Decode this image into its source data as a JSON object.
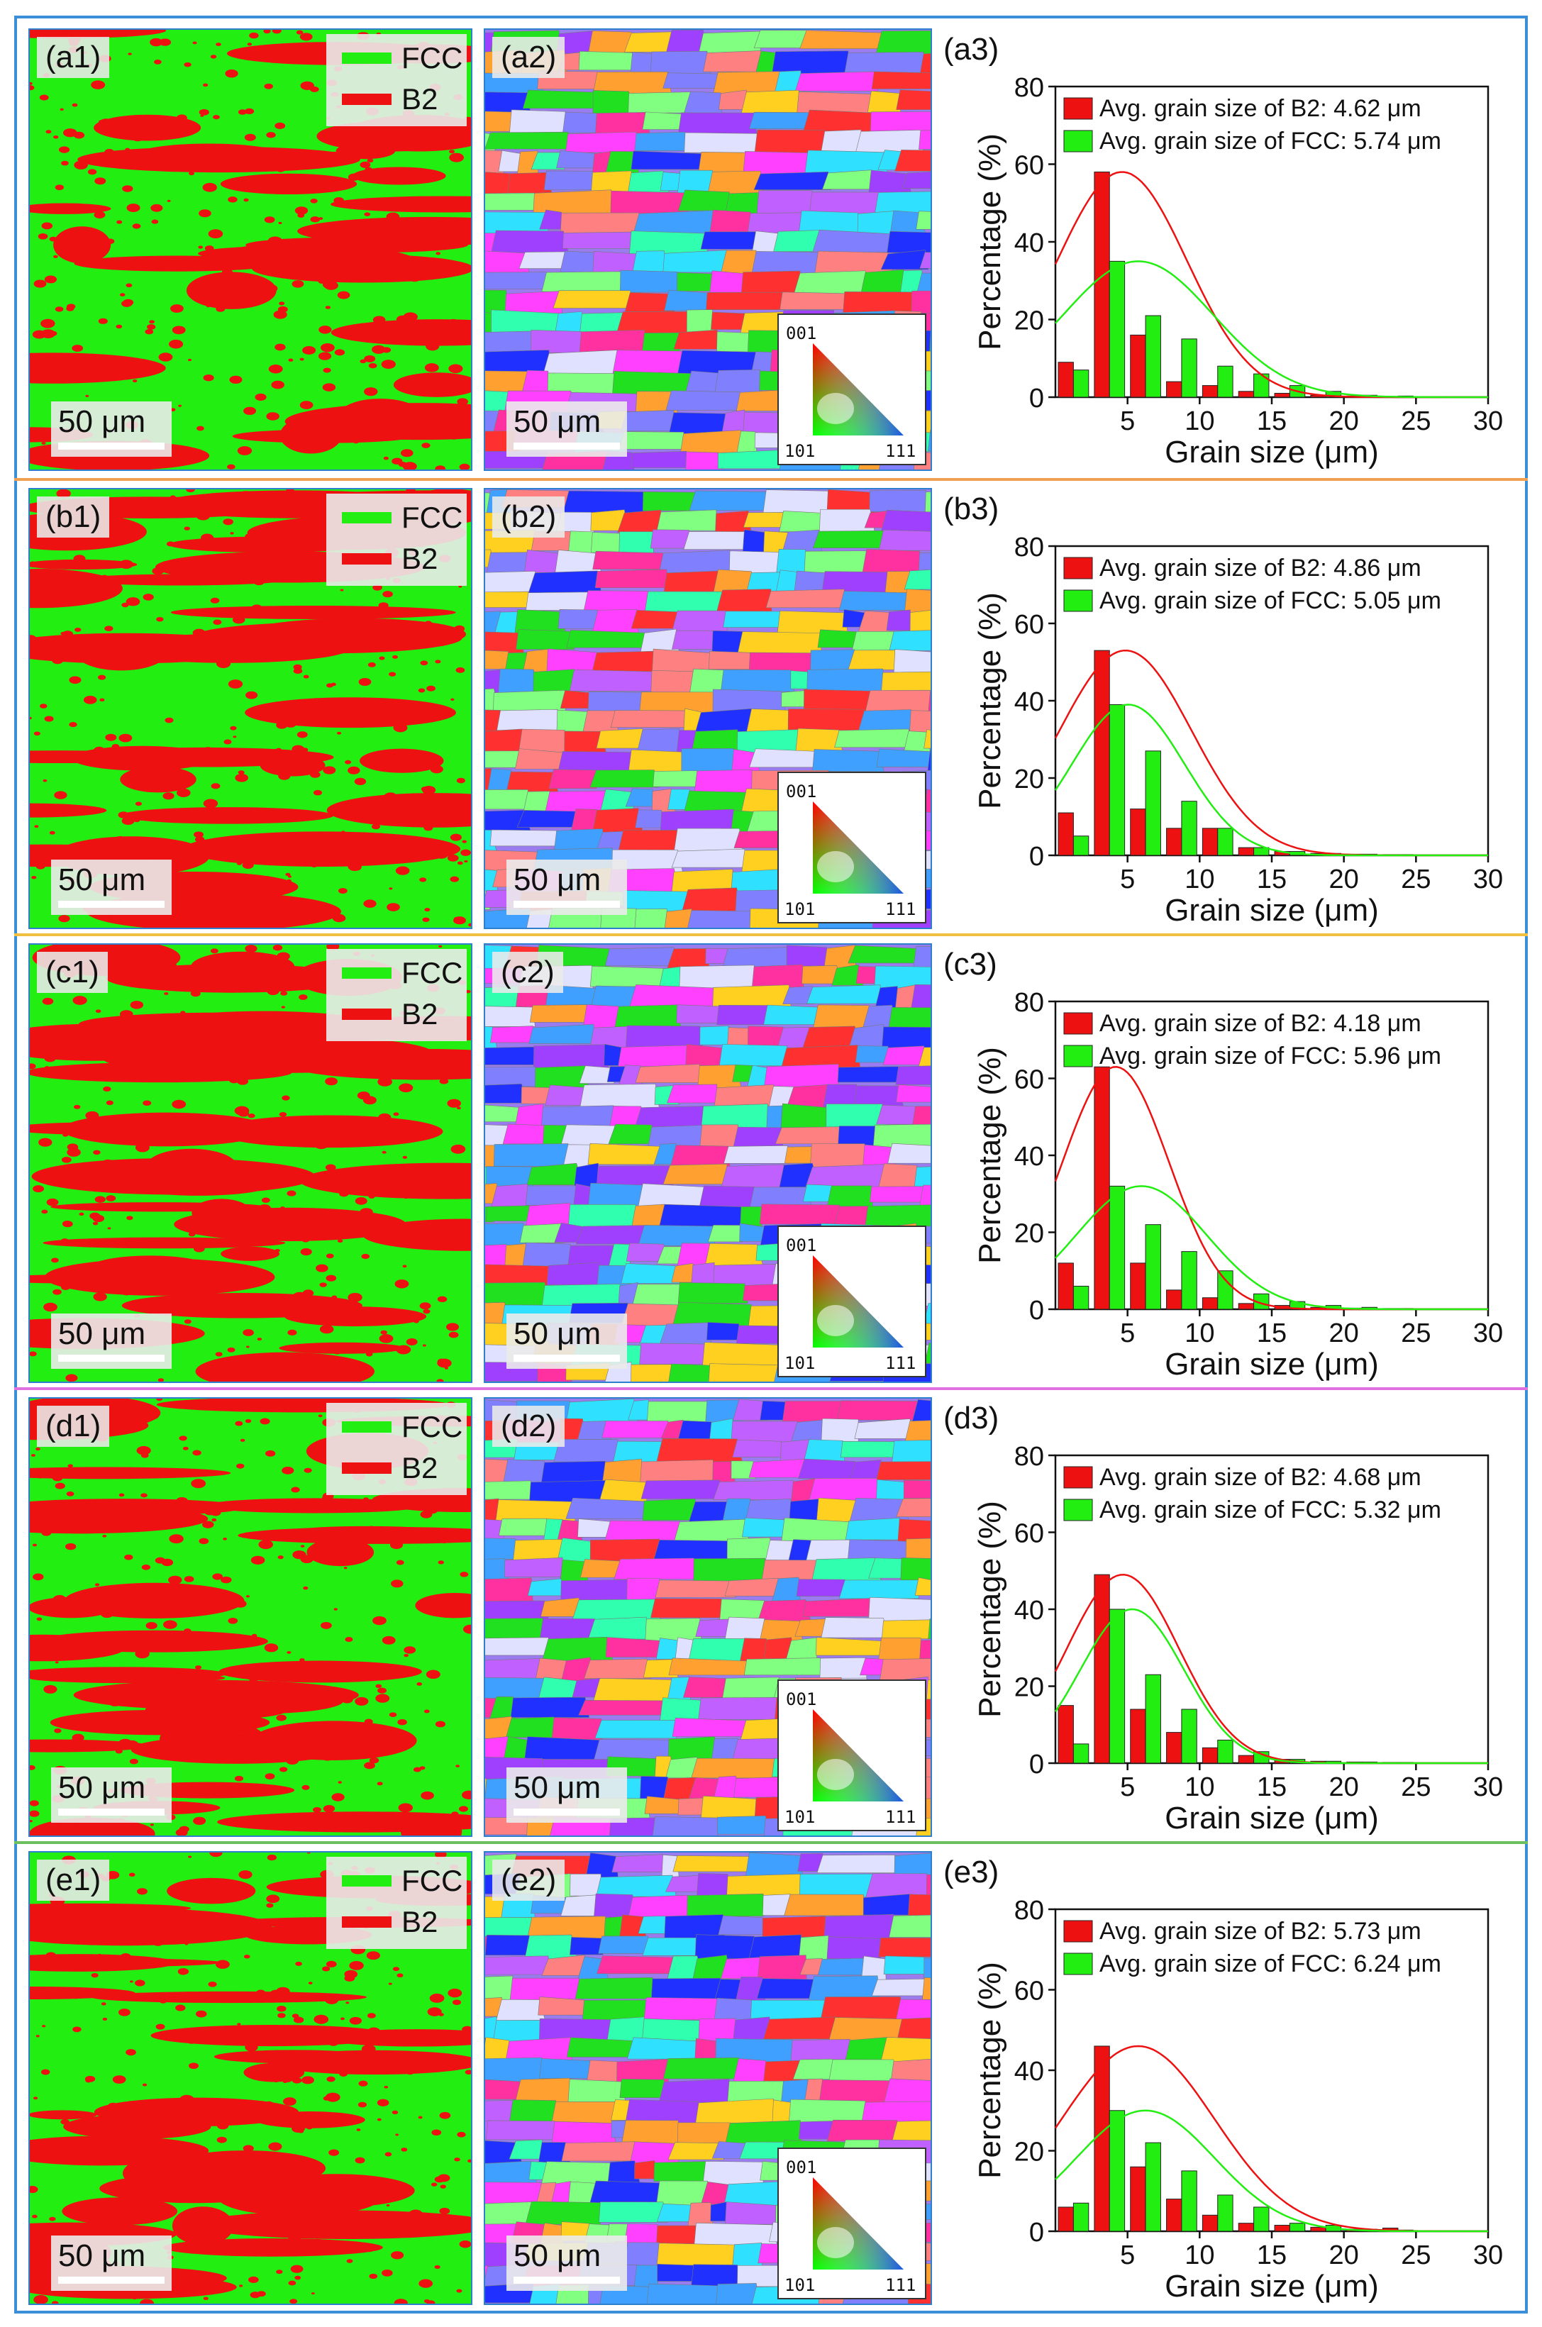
{
  "legend": {
    "fcc_label": "FCC",
    "b2_label": "B2"
  },
  "scalebar": {
    "label": "50 μm"
  },
  "ipf": {
    "pole_001": "001",
    "pole_101": "101",
    "pole_111": "111"
  },
  "colors": {
    "fcc": "#22ee11",
    "b2": "#ee1111",
    "frame_blue": "#3b8fd8",
    "sep_orange": "#f0a050",
    "sep_yellow": "#f2c040",
    "sep_magenta": "#e070e0",
    "sep_green": "#6cc060"
  },
  "rows": [
    {
      "phase_label": "(a1)",
      "ipf_label": "(a2)",
      "chart_label": "(a3)"
    },
    {
      "phase_label": "(b1)",
      "ipf_label": "(b2)",
      "chart_label": "(b3)"
    },
    {
      "phase_label": "(c1)",
      "ipf_label": "(c2)",
      "chart_label": "(c3)"
    },
    {
      "phase_label": "(d1)",
      "ipf_label": "(d2)",
      "chart_label": "(d3)"
    },
    {
      "phase_label": "(e1)",
      "ipf_label": "(e2)",
      "chart_label": "(e3)"
    }
  ],
  "chart_data": [
    {
      "type": "bar",
      "panel": "(a3)",
      "xlabel": "Grain size (μm)",
      "ylabel": "Percentage (%)",
      "xlim": [
        0,
        30
      ],
      "ylim": [
        0,
        80
      ],
      "xticks": [
        5,
        10,
        15,
        20,
        25,
        30
      ],
      "yticks": [
        0,
        20,
        40,
        60,
        80
      ],
      "categories": [
        1.25,
        3.75,
        6.25,
        8.75,
        11.25,
        13.75,
        16.25,
        18.75,
        21.25,
        23.75,
        26.25,
        28.75
      ],
      "series": [
        {
          "name": "Avg. grain size of B2: 4.62 μm",
          "color": "#ee1111",
          "values": [
            9,
            58,
            16,
            4,
            3,
            1.5,
            1,
            0.5,
            0.3,
            0.2,
            0.1,
            0.1
          ],
          "fit_mean": 4.62,
          "fit_peak": 58,
          "fit_sigma": 4.5
        },
        {
          "name": "Avg. grain size of FCC: 5.74 μm",
          "color": "#22ee11",
          "values": [
            7,
            35,
            21,
            15,
            8,
            6,
            3,
            1.5,
            0.5,
            0.3,
            0.1,
            0.1
          ],
          "fit_mean": 5.74,
          "fit_peak": 35,
          "fit_sigma": 5.2
        }
      ]
    },
    {
      "type": "bar",
      "panel": "(b3)",
      "xlabel": "Grain size (μm)",
      "ylabel": "Percentage (%)",
      "xlim": [
        0,
        30
      ],
      "ylim": [
        0,
        80
      ],
      "xticks": [
        5,
        10,
        15,
        20,
        25,
        30
      ],
      "yticks": [
        0,
        20,
        40,
        60,
        80
      ],
      "categories": [
        1.25,
        3.75,
        6.25,
        8.75,
        11.25,
        13.75,
        16.25,
        18.75,
        21.25,
        23.75,
        26.25,
        28.75
      ],
      "series": [
        {
          "name": "Avg. grain size of B2: 4.86 μm",
          "color": "#ee1111",
          "values": [
            11,
            53,
            12,
            7,
            7,
            2,
            1,
            0.5,
            0.3,
            0.2,
            0.1,
            0.1
          ],
          "fit_mean": 4.86,
          "fit_peak": 53,
          "fit_sigma": 4.6
        },
        {
          "name": "Avg. grain size of FCC: 5.05 μm",
          "color": "#22ee11",
          "values": [
            5,
            39,
            27,
            14,
            7,
            2,
            1,
            0.5,
            0.3,
            0.2,
            0.1,
            0.1
          ],
          "fit_mean": 5.05,
          "fit_peak": 39,
          "fit_sigma": 3.9
        }
      ]
    },
    {
      "type": "bar",
      "panel": "(c3)",
      "xlabel": "Grain size (μm)",
      "ylabel": "Percentage (%)",
      "xlim": [
        0,
        30
      ],
      "ylim": [
        0,
        80
      ],
      "xticks": [
        5,
        10,
        15,
        20,
        25,
        30
      ],
      "yticks": [
        0,
        20,
        40,
        60,
        80
      ],
      "categories": [
        1.25,
        3.75,
        6.25,
        8.75,
        11.25,
        13.75,
        16.25,
        18.75,
        21.25,
        23.75,
        26.25,
        28.75
      ],
      "series": [
        {
          "name": "Avg. grain size of B2: 4.18 μm",
          "color": "#ee1111",
          "values": [
            12,
            63,
            12,
            5,
            3,
            1.5,
            1,
            0.5,
            0.3,
            0.2,
            0.1,
            0.1
          ],
          "fit_mean": 4.18,
          "fit_peak": 63,
          "fit_sigma": 3.7
        },
        {
          "name": "Avg. grain size of FCC: 5.96 μm",
          "color": "#22ee11",
          "values": [
            6,
            32,
            22,
            15,
            10,
            4,
            2,
            1,
            0.5,
            0.2,
            0.1,
            0.1
          ],
          "fit_mean": 5.96,
          "fit_peak": 32,
          "fit_sigma": 4.5
        }
      ]
    },
    {
      "type": "bar",
      "panel": "(d3)",
      "xlabel": "Grain size (μm)",
      "ylabel": "Percentage (%)",
      "xlim": [
        0,
        30
      ],
      "ylim": [
        0,
        80
      ],
      "xticks": [
        5,
        10,
        15,
        20,
        25,
        30
      ],
      "yticks": [
        0,
        20,
        40,
        60,
        80
      ],
      "categories": [
        1.25,
        3.75,
        6.25,
        8.75,
        11.25,
        13.75,
        16.25,
        18.75,
        21.25,
        23.75,
        26.25,
        28.75
      ],
      "series": [
        {
          "name": "Avg. grain size of B2: 4.68 μm",
          "color": "#ee1111",
          "values": [
            15,
            49,
            14,
            8,
            4,
            2,
            1,
            0.5,
            0.3,
            0.2,
            0.1,
            0.1
          ],
          "fit_mean": 4.68,
          "fit_peak": 49,
          "fit_sigma": 3.9
        },
        {
          "name": "Avg. grain size of FCC: 5.32 μm",
          "color": "#22ee11",
          "values": [
            5,
            40,
            23,
            14,
            6,
            3,
            1,
            0.5,
            0.3,
            0.2,
            0.1,
            0.1
          ],
          "fit_mean": 5.32,
          "fit_peak": 40,
          "fit_sigma": 3.6
        }
      ]
    },
    {
      "type": "bar",
      "panel": "(e3)",
      "xlabel": "Grain size (μm)",
      "ylabel": "Percentage (%)",
      "xlim": [
        0,
        30
      ],
      "ylim": [
        0,
        80
      ],
      "xticks": [
        5,
        10,
        15,
        20,
        25,
        30
      ],
      "yticks": [
        0,
        20,
        40,
        60,
        80
      ],
      "categories": [
        1.25,
        3.75,
        6.25,
        8.75,
        11.25,
        13.75,
        16.25,
        18.75,
        21.25,
        23.75,
        26.25,
        28.75
      ],
      "series": [
        {
          "name": "Avg. grain size of B2: 5.73 μm",
          "color": "#ee1111",
          "values": [
            6,
            46,
            16,
            8,
            4,
            2,
            1.5,
            1,
            0.5,
            0.8,
            0.1,
            0.1
          ],
          "fit_mean": 5.73,
          "fit_peak": 46,
          "fit_sigma": 5.3
        },
        {
          "name": "Avg. grain size of FCC: 6.24 μm",
          "color": "#22ee11",
          "values": [
            7,
            30,
            22,
            15,
            9,
            6,
            2,
            1.5,
            0.5,
            0.3,
            0.1,
            0.1
          ],
          "fit_mean": 6.24,
          "fit_peak": 30,
          "fit_sigma": 4.8
        }
      ]
    }
  ]
}
